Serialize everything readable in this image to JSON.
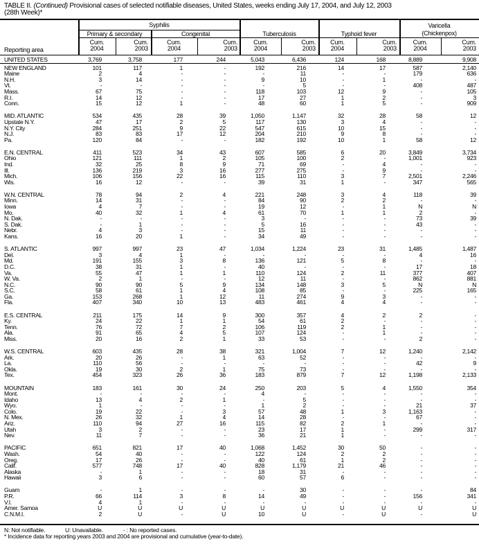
{
  "title": {
    "prefix": "TABLE II. ",
    "continued": "(Continued)",
    "text": " Provisional cases of selected notifiable diseases, United States, weeks ending July 17, 2004, and July 12, 2003",
    "line2": "(28th Week)*"
  },
  "header": {
    "reporting_area": "Reporting area",
    "syphilis": "Syphilis",
    "primary_secondary": "Primary & secondary",
    "congenital": "Congenital",
    "tuberculosis": "Tuberculosis",
    "typhoid": "Typhoid fever",
    "varicella": "Varicella",
    "chickenpox": "(Chickenpox)",
    "cum": "Cum.",
    "years": [
      "2004",
      "2003",
      "2004",
      "2003",
      "2004",
      "2003",
      "2004",
      "2003",
      "2004",
      "2003"
    ]
  },
  "total": [
    "UNITED STATES",
    "3,769",
    "3,758",
    "177",
    "244",
    "5,043",
    "6,436",
    "124",
    "168",
    "8,889",
    "9,908"
  ],
  "groups": [
    [
      [
        "NEW ENGLAND",
        "101",
        "117",
        "1",
        "-",
        "192",
        "216",
        "14",
        "17",
        "587",
        "2,140"
      ],
      [
        "Maine",
        "2",
        "4",
        "-",
        "-",
        "-",
        "11",
        "-",
        "-",
        "179",
        "636"
      ],
      [
        "N.H.",
        "3",
        "14",
        "-",
        "-",
        "9",
        "10",
        "-",
        "1",
        "-",
        "-"
      ],
      [
        "Vt.",
        "-",
        "-",
        "-",
        "-",
        "-",
        "5",
        "-",
        "-",
        "408",
        "487"
      ],
      [
        "Mass.",
        "67",
        "75",
        "-",
        "-",
        "118",
        "103",
        "12",
        "9",
        "-",
        "105"
      ],
      [
        "R.I.",
        "14",
        "12",
        "-",
        "-",
        "17",
        "27",
        "1",
        "2",
        "-",
        "3"
      ],
      [
        "Conn.",
        "15",
        "12",
        "1",
        "-",
        "48",
        "60",
        "1",
        "5",
        "-",
        "909"
      ]
    ],
    [
      [
        "MID. ATLANTIC",
        "534",
        "435",
        "28",
        "39",
        "1,050",
        "1,147",
        "32",
        "28",
        "58",
        "12"
      ],
      [
        "Upstate N.Y.",
        "47",
        "17",
        "2",
        "5",
        "117",
        "130",
        "3",
        "4",
        "-",
        "-"
      ],
      [
        "N.Y. City",
        "284",
        "251",
        "9",
        "22",
        "547",
        "615",
        "10",
        "15",
        "-",
        "-"
      ],
      [
        "N.J.",
        "83",
        "83",
        "17",
        "12",
        "204",
        "210",
        "9",
        "8",
        "-",
        "-"
      ],
      [
        "Pa.",
        "120",
        "84",
        "-",
        "-",
        "182",
        "192",
        "10",
        "1",
        "58",
        "12"
      ]
    ],
    [
      [
        "E.N. CENTRAL",
        "411",
        "523",
        "34",
        "43",
        "607",
        "585",
        "6",
        "20",
        "3,849",
        "3,734"
      ],
      [
        "Ohio",
        "121",
        "111",
        "1",
        "2",
        "105",
        "100",
        "2",
        "-",
        "1,001",
        "923"
      ],
      [
        "Ind.",
        "32",
        "25",
        "8",
        "9",
        "71",
        "69",
        "-",
        "4",
        "-",
        "-"
      ],
      [
        "Ill.",
        "136",
        "219",
        "3",
        "16",
        "277",
        "275",
        "-",
        "9",
        "-",
        "-"
      ],
      [
        "Mich.",
        "106",
        "156",
        "22",
        "16",
        "115",
        "110",
        "3",
        "7",
        "2,501",
        "2,246"
      ],
      [
        "Wis.",
        "16",
        "12",
        "-",
        "-",
        "39",
        "31",
        "1",
        "-",
        "347",
        "565"
      ]
    ],
    [
      [
        "W.N. CENTRAL",
        "78",
        "94",
        "2",
        "4",
        "221",
        "248",
        "3",
        "4",
        "118",
        "39"
      ],
      [
        "Minn.",
        "14",
        "31",
        "-",
        "-",
        "84",
        "90",
        "2",
        "2",
        "-",
        "-"
      ],
      [
        "Iowa",
        "4",
        "7",
        "-",
        "-",
        "19",
        "12",
        "-",
        "1",
        "N",
        "N"
      ],
      [
        "Mo.",
        "40",
        "32",
        "1",
        "4",
        "61",
        "70",
        "1",
        "1",
        "2",
        "-"
      ],
      [
        "N. Dak.",
        "-",
        "-",
        "-",
        "-",
        "3",
        "-",
        "-",
        "-",
        "73",
        "39"
      ],
      [
        "S. Dak.",
        "-",
        "1",
        "-",
        "-",
        "5",
        "16",
        "-",
        "-",
        "43",
        "-"
      ],
      [
        "Nebr.",
        "4",
        "3",
        "-",
        "-",
        "15",
        "11",
        "-",
        "-",
        "-",
        "-"
      ],
      [
        "Kans.",
        "16",
        "20",
        "1",
        "-",
        "34",
        "49",
        "-",
        "-",
        "-",
        "-"
      ]
    ],
    [
      [
        "S. ATLANTIC",
        "997",
        "997",
        "23",
        "47",
        "1,034",
        "1,224",
        "23",
        "31",
        "1,485",
        "1,487"
      ],
      [
        "Del.",
        "3",
        "4",
        "1",
        "-",
        "-",
        "-",
        "-",
        "-",
        "4",
        "16"
      ],
      [
        "Md.",
        "191",
        "155",
        "3",
        "8",
        "136",
        "121",
        "5",
        "8",
        "-",
        "-"
      ],
      [
        "D.C.",
        "38",
        "31",
        "1",
        "-",
        "40",
        "-",
        "-",
        "-",
        "17",
        "18"
      ],
      [
        "Va.",
        "55",
        "47",
        "1",
        "1",
        "110",
        "124",
        "2",
        "11",
        "377",
        "407"
      ],
      [
        "W. Va.",
        "2",
        "1",
        "-",
        "-",
        "12",
        "11",
        "-",
        "-",
        "862",
        "881"
      ],
      [
        "N.C.",
        "90",
        "90",
        "5",
        "9",
        "134",
        "148",
        "3",
        "5",
        "N",
        "N"
      ],
      [
        "S.C.",
        "58",
        "61",
        "1",
        "4",
        "108",
        "85",
        "-",
        "-",
        "225",
        "165"
      ],
      [
        "Ga.",
        "153",
        "268",
        "1",
        "12",
        "11",
        "274",
        "9",
        "3",
        "-",
        "-"
      ],
      [
        "Fla.",
        "407",
        "340",
        "10",
        "13",
        "483",
        "461",
        "4",
        "4",
        "-",
        "-"
      ]
    ],
    [
      [
        "E.S. CENTRAL",
        "211",
        "175",
        "14",
        "9",
        "300",
        "357",
        "4",
        "2",
        "2",
        "-"
      ],
      [
        "Ky.",
        "24",
        "22",
        "1",
        "1",
        "54",
        "61",
        "2",
        "-",
        "-",
        "-"
      ],
      [
        "Tenn.",
        "76",
        "72",
        "7",
        "2",
        "106",
        "119",
        "2",
        "1",
        "-",
        "-"
      ],
      [
        "Ala.",
        "91",
        "65",
        "4",
        "5",
        "107",
        "124",
        "-",
        "1",
        "-",
        "-"
      ],
      [
        "Miss.",
        "20",
        "16",
        "2",
        "1",
        "33",
        "53",
        "-",
        "-",
        "2",
        "-"
      ]
    ],
    [
      [
        "W.S. CENTRAL",
        "603",
        "435",
        "28",
        "38",
        "321",
        "1,004",
        "7",
        "12",
        "1,240",
        "2,142"
      ],
      [
        "Ark.",
        "20",
        "26",
        "-",
        "1",
        "63",
        "52",
        "-",
        "-",
        "-",
        "-"
      ],
      [
        "La.",
        "110",
        "56",
        "-",
        "-",
        "-",
        "-",
        "-",
        "-",
        "42",
        "9"
      ],
      [
        "Okla.",
        "19",
        "30",
        "2",
        "1",
        "75",
        "73",
        "-",
        "-",
        "-",
        "-"
      ],
      [
        "Tex.",
        "454",
        "323",
        "26",
        "36",
        "183",
        "879",
        "7",
        "12",
        "1,198",
        "2,133"
      ]
    ],
    [
      [
        "MOUNTAIN",
        "183",
        "161",
        "30",
        "24",
        "250",
        "203",
        "5",
        "4",
        "1,550",
        "354"
      ],
      [
        "Mont.",
        "-",
        "-",
        "-",
        "-",
        "4",
        "-",
        "-",
        "-",
        "-",
        "-"
      ],
      [
        "Idaho",
        "13",
        "4",
        "2",
        "1",
        "-",
        "5",
        "-",
        "-",
        "-",
        "-"
      ],
      [
        "Wyo.",
        "1",
        "-",
        "-",
        "-",
        "1",
        "2",
        "-",
        "-",
        "21",
        "37"
      ],
      [
        "Colo.",
        "19",
        "22",
        "-",
        "3",
        "57",
        "48",
        "1",
        "3",
        "1,163",
        "-"
      ],
      [
        "N. Mex.",
        "26",
        "32",
        "1",
        "4",
        "14",
        "28",
        "-",
        "-",
        "67",
        "-"
      ],
      [
        "Ariz.",
        "110",
        "94",
        "27",
        "16",
        "115",
        "82",
        "2",
        "1",
        "-",
        "-"
      ],
      [
        "Utah",
        "3",
        "2",
        "-",
        "-",
        "23",
        "17",
        "1",
        "-",
        "299",
        "317"
      ],
      [
        "Nev.",
        "11",
        "7",
        "-",
        "-",
        "36",
        "21",
        "1",
        "-",
        "-",
        "-"
      ]
    ],
    [
      [
        "PACIFIC",
        "651",
        "821",
        "17",
        "40",
        "1,068",
        "1,452",
        "30",
        "50",
        "-",
        "-"
      ],
      [
        "Wash.",
        "54",
        "40",
        "-",
        "-",
        "122",
        "124",
        "2",
        "2",
        "-",
        "-"
      ],
      [
        "Oreg.",
        "17",
        "26",
        "-",
        "-",
        "40",
        "61",
        "1",
        "2",
        "-",
        "-"
      ],
      [
        "Calif.",
        "577",
        "748",
        "17",
        "40",
        "828",
        "1,179",
        "21",
        "46",
        "-",
        "-"
      ],
      [
        "Alaska",
        "-",
        "1",
        "-",
        "-",
        "18",
        "31",
        "-",
        "-",
        "-",
        "-"
      ],
      [
        "Hawaii",
        "3",
        "6",
        "-",
        "-",
        "60",
        "57",
        "6",
        "-",
        "-",
        "-"
      ]
    ],
    [
      [
        "Guam",
        "-",
        "1",
        "-",
        "-",
        "-",
        "30",
        "-",
        "-",
        "-",
        "84"
      ],
      [
        "P.R.",
        "66",
        "114",
        "3",
        "8",
        "14",
        "49",
        "-",
        "-",
        "156",
        "341"
      ],
      [
        "V.I.",
        "4",
        "1",
        "-",
        "-",
        "-",
        "-",
        "-",
        "-",
        "-",
        "-"
      ],
      [
        "Amer. Samoa",
        "U",
        "U",
        "U",
        "U",
        "U",
        "U",
        "U",
        "U",
        "U",
        "U"
      ],
      [
        "C.N.M.I.",
        "2",
        "U",
        "-",
        "U",
        "10",
        "U",
        "-",
        "U",
        "-",
        "U"
      ]
    ]
  ],
  "footnotes": {
    "n": "N: Not notifiable.",
    "u": "U: Unavailable.",
    "dash": "- : No reported cases.",
    "star": "* Incidence data for reporting years 2003 and 2004 are provisional and cumulative (year-to-date)."
  }
}
